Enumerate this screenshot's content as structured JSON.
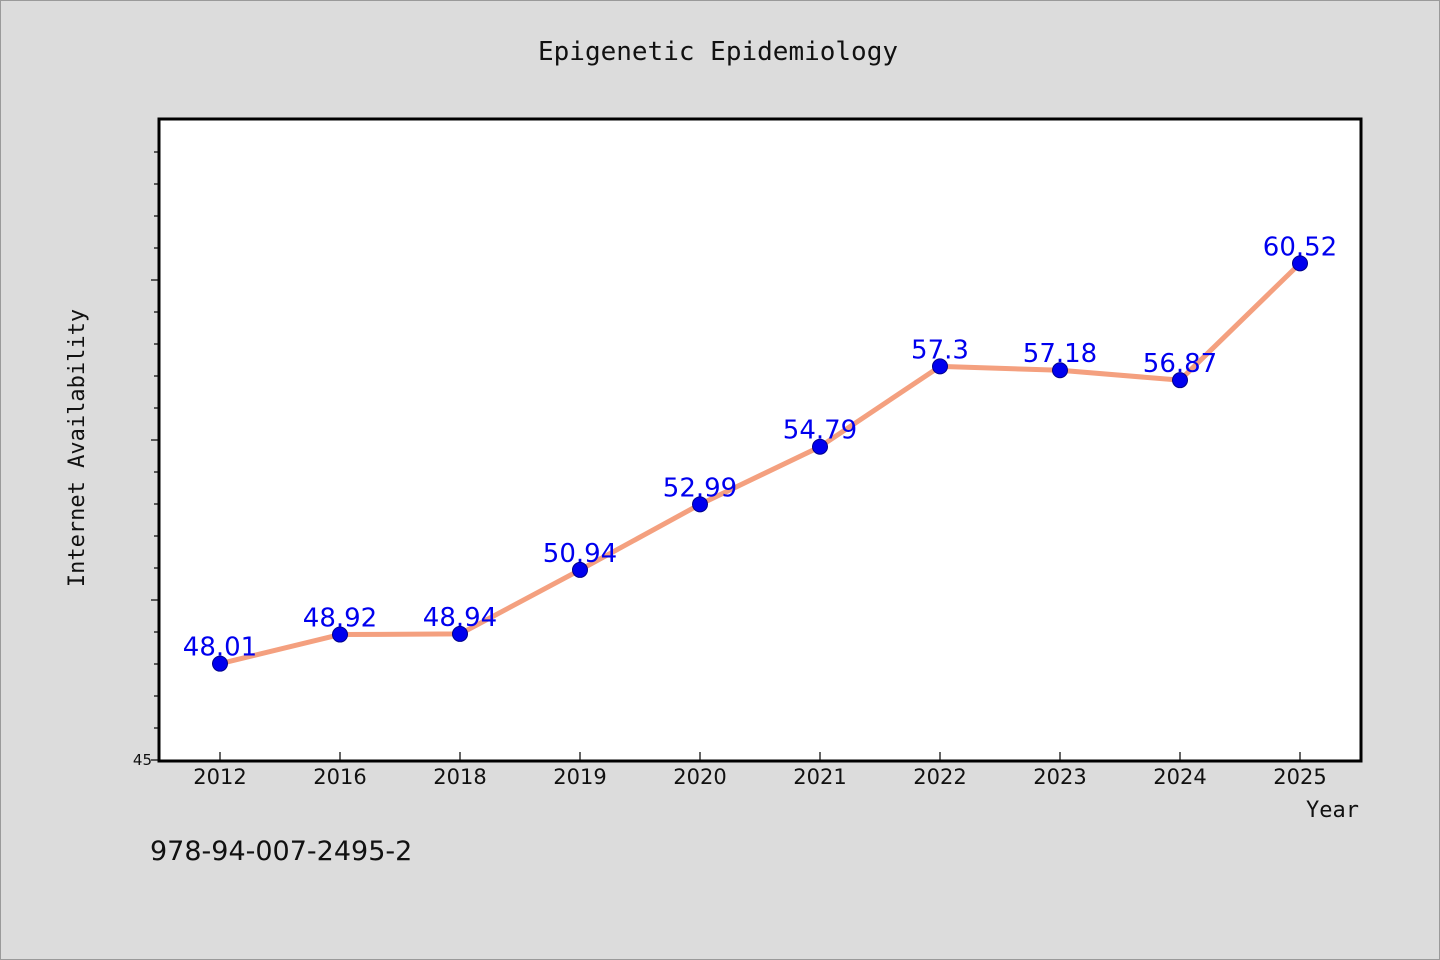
{
  "chart_data": {
    "type": "line",
    "title": "Epigenetic Epidemiology",
    "xlabel": "Year",
    "ylabel": "Internet Availability",
    "categories": [
      "2012",
      "2016",
      "2018",
      "2019",
      "2020",
      "2021",
      "2022",
      "2023",
      "2024",
      "2025"
    ],
    "series": [
      {
        "values": [
          48.01,
          48.92,
          48.94,
          50.94,
          52.99,
          54.79,
          57.3,
          57.18,
          56.87,
          60.52
        ],
        "labels": [
          "48.01",
          "48.92",
          "48.94",
          "50.94",
          "52.99",
          "54.79",
          "57.3",
          "57.18",
          "56.87",
          "60.52"
        ]
      }
    ],
    "ylim": [
      45,
      65
    ],
    "y_tick_labels": [
      "45"
    ],
    "grid": false,
    "line_color": "#f4a07f",
    "marker_color": "#0000ee",
    "label_color": "#0000ee"
  },
  "footer": {
    "isbn": "978-94-007-2495-2"
  }
}
